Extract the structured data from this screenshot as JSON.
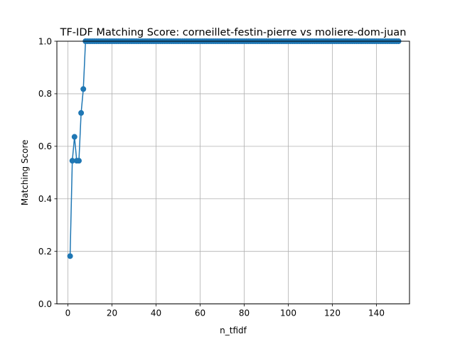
{
  "chart_data": {
    "type": "line",
    "title": "TF-IDF Matching Score: corneillet-festin-pierre vs moliere-dom-juan",
    "xlabel": "n_tfidf",
    "ylabel": "Matching Score",
    "xlim": [
      -5,
      155
    ],
    "ylim": [
      0,
      1
    ],
    "xticks": [
      0,
      20,
      40,
      60,
      80,
      100,
      120,
      140
    ],
    "yticks": [
      0.0,
      0.2,
      0.4,
      0.6,
      0.8,
      1.0
    ],
    "grid": true,
    "legend": "none",
    "series": [
      {
        "color": "#1f77b4",
        "marker": "circle",
        "x": [
          1,
          2,
          3,
          4,
          5,
          6,
          7,
          8,
          9,
          10,
          11,
          12,
          13,
          14,
          15,
          16,
          17,
          18,
          19,
          20,
          21,
          22,
          23,
          24,
          25,
          26,
          27,
          28,
          29,
          30,
          31,
          32,
          33,
          34,
          35,
          36,
          37,
          38,
          39,
          40,
          41,
          42,
          43,
          44,
          45,
          46,
          47,
          48,
          49,
          50,
          51,
          52,
          53,
          54,
          55,
          56,
          57,
          58,
          59,
          60,
          61,
          62,
          63,
          64,
          65,
          66,
          67,
          68,
          69,
          70,
          71,
          72,
          73,
          74,
          75,
          76,
          77,
          78,
          79,
          80,
          81,
          82,
          83,
          84,
          85,
          86,
          87,
          88,
          89,
          90,
          91,
          92,
          93,
          94,
          95,
          96,
          97,
          98,
          99,
          100,
          101,
          102,
          103,
          104,
          105,
          106,
          107,
          108,
          109,
          110,
          111,
          112,
          113,
          114,
          115,
          116,
          117,
          118,
          119,
          120,
          121,
          122,
          123,
          124,
          125,
          126,
          127,
          128,
          129,
          130,
          131,
          132,
          133,
          134,
          135,
          136,
          137,
          138,
          139,
          140,
          141,
          142,
          143,
          144,
          145,
          146,
          147,
          148,
          149,
          150
        ],
        "y": [
          0.182,
          0.545,
          0.636,
          0.545,
          0.545,
          0.727,
          0.818,
          1.0,
          1.0,
          1.0,
          1.0,
          1.0,
          1.0,
          1.0,
          1.0,
          1.0,
          1.0,
          1.0,
          1.0,
          1.0,
          1.0,
          1.0,
          1.0,
          1.0,
          1.0,
          1.0,
          1.0,
          1.0,
          1.0,
          1.0,
          1.0,
          1.0,
          1.0,
          1.0,
          1.0,
          1.0,
          1.0,
          1.0,
          1.0,
          1.0,
          1.0,
          1.0,
          1.0,
          1.0,
          1.0,
          1.0,
          1.0,
          1.0,
          1.0,
          1.0,
          1.0,
          1.0,
          1.0,
          1.0,
          1.0,
          1.0,
          1.0,
          1.0,
          1.0,
          1.0,
          1.0,
          1.0,
          1.0,
          1.0,
          1.0,
          1.0,
          1.0,
          1.0,
          1.0,
          1.0,
          1.0,
          1.0,
          1.0,
          1.0,
          1.0,
          1.0,
          1.0,
          1.0,
          1.0,
          1.0,
          1.0,
          1.0,
          1.0,
          1.0,
          1.0,
          1.0,
          1.0,
          1.0,
          1.0,
          1.0,
          1.0,
          1.0,
          1.0,
          1.0,
          1.0,
          1.0,
          1.0,
          1.0,
          1.0,
          1.0,
          1.0,
          1.0,
          1.0,
          1.0,
          1.0,
          1.0,
          1.0,
          1.0,
          1.0,
          1.0,
          1.0,
          1.0,
          1.0,
          1.0,
          1.0,
          1.0,
          1.0,
          1.0,
          1.0,
          1.0,
          1.0,
          1.0,
          1.0,
          1.0,
          1.0,
          1.0,
          1.0,
          1.0,
          1.0,
          1.0,
          1.0,
          1.0,
          1.0,
          1.0,
          1.0,
          1.0,
          1.0,
          1.0,
          1.0,
          1.0,
          1.0,
          1.0,
          1.0,
          1.0,
          1.0,
          1.0,
          1.0,
          1.0,
          1.0,
          1.0
        ]
      }
    ]
  }
}
